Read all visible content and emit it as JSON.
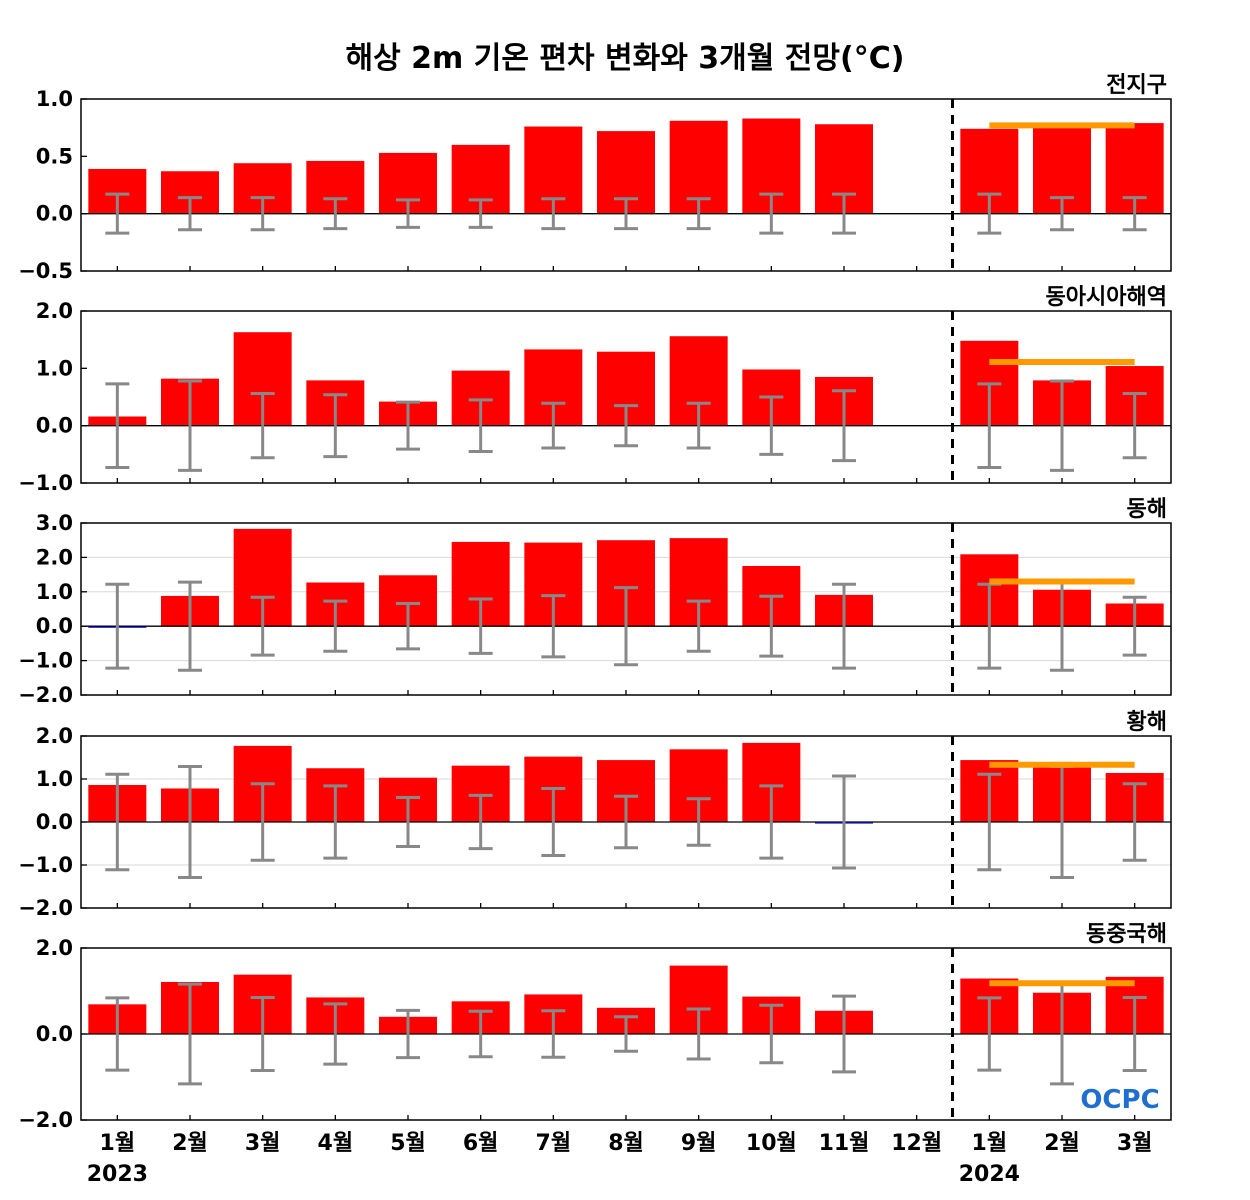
{
  "title": "해상 2m 기온 편차 변화와 3개월 전망(°C)",
  "logo_text": "OCPC",
  "colors": {
    "bar": "#ff0000",
    "negative_bar": "#3a3aff",
    "error_bar": "#888888",
    "forecast_line": "#ff9900",
    "divider": "#000000",
    "grid": "#d9d9d9",
    "logo": "#1f6fd1"
  },
  "chart_data": {
    "type": "bar",
    "categories": [
      "1월",
      "2월",
      "3월",
      "4월",
      "5월",
      "6월",
      "7월",
      "8월",
      "9월",
      "10월",
      "11월",
      "12월",
      "1월",
      "2월",
      "3월"
    ],
    "year_labels": [
      {
        "category_index": 0,
        "text": "2023"
      },
      {
        "category_index": 12,
        "text": "2024"
      }
    ],
    "divider_between": [
      11,
      12
    ],
    "panels": [
      {
        "name": "전지구",
        "ylim": [
          -0.5,
          1.0
        ],
        "yticks": [
          -0.5,
          0.0,
          0.5,
          1.0
        ],
        "ytick_labels": [
          "−0.5",
          "0.0",
          "0.5",
          "1.0"
        ],
        "gridlines": [],
        "values": [
          0.39,
          0.37,
          0.44,
          0.46,
          0.53,
          0.6,
          0.76,
          0.72,
          0.81,
          0.83,
          0.78,
          0.0,
          0.74,
          0.78,
          0.79
        ],
        "error_bars": [
          0.17,
          0.14,
          0.14,
          0.13,
          0.12,
          0.12,
          0.13,
          0.13,
          0.13,
          0.17,
          0.17,
          null,
          0.17,
          0.14,
          0.14
        ],
        "forecast_mean": 0.77
      },
      {
        "name": "동아시아해역",
        "ylim": [
          -1.0,
          2.0
        ],
        "yticks": [
          -1.0,
          0.0,
          1.0,
          2.0
        ],
        "ytick_labels": [
          "−1.0",
          "0.0",
          "1.0",
          "2.0"
        ],
        "gridlines": [],
        "values": [
          0.16,
          0.82,
          1.63,
          0.79,
          0.42,
          0.96,
          1.33,
          1.29,
          1.56,
          0.98,
          0.85,
          0.0,
          1.48,
          0.79,
          1.04
        ],
        "error_bars": [
          0.73,
          0.78,
          0.56,
          0.54,
          0.41,
          0.45,
          0.39,
          0.35,
          0.39,
          0.5,
          0.61,
          null,
          0.73,
          0.78,
          0.56
        ],
        "forecast_mean": 1.11
      },
      {
        "name": "동해",
        "ylim": [
          -2.0,
          3.0
        ],
        "yticks": [
          -2.0,
          -1.0,
          0.0,
          1.0,
          2.0,
          3.0
        ],
        "ytick_labels": [
          "−2.0",
          "−1.0",
          "0.0",
          "1.0",
          "2.0",
          "3.0"
        ],
        "gridlines": [
          -1.0,
          1.0,
          2.0
        ],
        "values": [
          -0.03,
          0.88,
          2.83,
          1.27,
          1.48,
          2.45,
          2.43,
          2.5,
          2.56,
          1.75,
          0.91,
          0.0,
          2.09,
          1.06,
          0.66
        ],
        "error_bars": [
          1.22,
          1.28,
          0.84,
          0.73,
          0.66,
          0.79,
          0.89,
          1.12,
          0.73,
          0.87,
          1.22,
          null,
          1.22,
          1.28,
          0.84
        ],
        "forecast_mean": 1.3
      },
      {
        "name": "황해",
        "ylim": [
          -2.0,
          2.0
        ],
        "yticks": [
          -2.0,
          -1.0,
          0.0,
          1.0,
          2.0
        ],
        "ytick_labels": [
          "−2.0",
          "−1.0",
          "0.0",
          "1.0",
          "2.0"
        ],
        "gridlines": [
          -1.0,
          1.0
        ],
        "values": [
          0.86,
          0.78,
          1.77,
          1.25,
          1.03,
          1.31,
          1.52,
          1.44,
          1.69,
          1.84,
          -0.03,
          0.0,
          1.44,
          1.32,
          1.14
        ],
        "error_bars": [
          1.11,
          1.29,
          0.89,
          0.84,
          0.57,
          0.62,
          0.78,
          0.6,
          0.54,
          0.84,
          1.07,
          null,
          1.11,
          1.29,
          0.89
        ],
        "forecast_mean": 1.33
      },
      {
        "name": "동중국해",
        "ylim": [
          -2.0,
          2.0
        ],
        "yticks": [
          -2.0,
          0.0,
          2.0
        ],
        "ytick_labels": [
          "−2.0",
          "0.0",
          "2.0"
        ],
        "gridlines": [],
        "values": [
          0.69,
          1.21,
          1.38,
          0.85,
          0.4,
          0.76,
          0.92,
          0.61,
          1.59,
          0.87,
          0.54,
          0.0,
          1.29,
          0.96,
          1.33
        ],
        "error_bars": [
          0.84,
          1.16,
          0.85,
          0.7,
          0.55,
          0.53,
          0.54,
          0.4,
          0.58,
          0.67,
          0.88,
          null,
          0.84,
          1.16,
          0.85
        ],
        "forecast_mean": 1.18
      }
    ]
  }
}
